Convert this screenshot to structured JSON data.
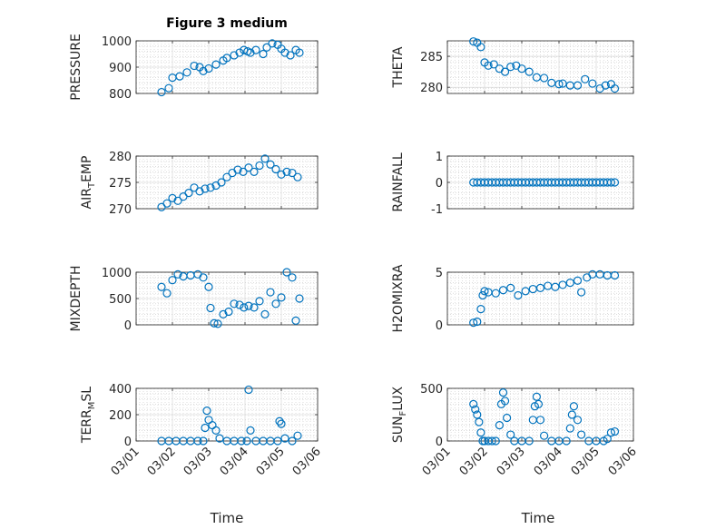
{
  "figure_title": "Figure 3 medium",
  "x_axis_label": "Time",
  "x_ticks": [
    "03/01",
    "03/02",
    "03/03",
    "03/04",
    "03/05",
    "03/06"
  ],
  "colors": {
    "marker": "#0072bd",
    "axes": "#262626",
    "grid": "#cfcfcf"
  },
  "chart_data": [
    {
      "type": "scatter",
      "ylabel": "PRESSURE",
      "yticks": [
        "800",
        "900",
        "1000"
      ],
      "ylim": [
        800,
        1000
      ],
      "xlabel": "",
      "grid": "on",
      "marker": "circle",
      "x": [
        1.7,
        1.9,
        2.0,
        2.2,
        2.4,
        2.6,
        2.75,
        2.85,
        3.0,
        3.2,
        3.4,
        3.5,
        3.7,
        3.85,
        3.97,
        4.07,
        4.15,
        4.3,
        4.5,
        4.6,
        4.75,
        4.9,
        5.0,
        5.1,
        5.25,
        5.4,
        5.5
      ],
      "y": [
        805,
        820,
        860,
        865,
        880,
        905,
        900,
        885,
        895,
        910,
        925,
        935,
        945,
        955,
        965,
        960,
        955,
        965,
        950,
        975,
        990,
        985,
        970,
        955,
        945,
        965,
        955
      ]
    },
    {
      "type": "scatter",
      "ylabel": "THETA",
      "yticks": [
        "280",
        "285"
      ],
      "ylim": [
        279,
        287.5
      ],
      "xlabel": "",
      "grid": "on",
      "marker": "circle",
      "x": [
        1.7,
        1.8,
        1.9,
        2.0,
        2.1,
        2.25,
        2.4,
        2.55,
        2.7,
        2.85,
        3.0,
        3.2,
        3.4,
        3.6,
        3.8,
        4.0,
        4.1,
        4.3,
        4.5,
        4.7,
        4.9,
        5.1,
        5.25,
        5.4,
        5.5
      ],
      "y": [
        287.4,
        287.2,
        286.5,
        284.0,
        283.5,
        283.7,
        283.0,
        282.5,
        283.3,
        283.5,
        283.0,
        282.5,
        281.6,
        281.5,
        280.7,
        280.5,
        280.6,
        280.3,
        280.3,
        281.3,
        280.6,
        279.8,
        280.3,
        280.5,
        279.8
      ]
    },
    {
      "type": "scatter",
      "ylabel": "AIR_TEMP",
      "ylabel_main": "AIR",
      "ylabel_sub": "T",
      "ylabel_rest": "EMP",
      "yticks": [
        "270",
        "275",
        "280"
      ],
      "ylim": [
        270,
        280
      ],
      "xlabel": "",
      "grid": "on",
      "marker": "circle",
      "x": [
        1.7,
        1.85,
        2.0,
        2.15,
        2.3,
        2.45,
        2.6,
        2.75,
        2.9,
        3.05,
        3.2,
        3.35,
        3.5,
        3.65,
        3.8,
        3.95,
        4.1,
        4.25,
        4.4,
        4.55,
        4.7,
        4.85,
        5.0,
        5.15,
        5.3,
        5.45
      ],
      "y": [
        270.3,
        271.0,
        272.0,
        271.5,
        272.3,
        273.0,
        274.0,
        273.3,
        273.8,
        274.0,
        274.4,
        275.0,
        276.0,
        276.8,
        277.4,
        277.0,
        277.8,
        277.0,
        278.2,
        279.5,
        278.4,
        277.5,
        276.5,
        277.0,
        276.8,
        276.0
      ]
    },
    {
      "type": "scatter",
      "ylabel": "RAINFALL",
      "yticks": [
        "-1",
        "0",
        "1"
      ],
      "ylim": [
        -1,
        1
      ],
      "xlabel": "",
      "grid": "on",
      "marker": "circle",
      "x": [
        1.7,
        1.8,
        1.9,
        2.0,
        2.1,
        2.2,
        2.3,
        2.4,
        2.5,
        2.6,
        2.7,
        2.8,
        2.9,
        3.0,
        3.1,
        3.2,
        3.3,
        3.4,
        3.5,
        3.6,
        3.7,
        3.8,
        3.9,
        4.0,
        4.1,
        4.2,
        4.3,
        4.4,
        4.5,
        4.6,
        4.7,
        4.8,
        4.9,
        5.0,
        5.1,
        5.2,
        5.3,
        5.4,
        5.5
      ],
      "y": [
        0,
        0,
        0,
        0,
        0,
        0,
        0,
        0,
        0,
        0,
        0,
        0,
        0,
        0,
        0,
        0,
        0,
        0,
        0,
        0,
        0,
        0,
        0,
        0,
        0,
        0,
        0,
        0,
        0,
        0,
        0,
        0,
        0,
        0,
        0,
        0,
        0,
        0,
        0
      ]
    },
    {
      "type": "scatter",
      "ylabel": "MIXDEPTH",
      "yticks": [
        "0",
        "500",
        "1000"
      ],
      "ylim": [
        0,
        1000
      ],
      "xlabel": "",
      "grid": "on",
      "marker": "circle",
      "x": [
        1.7,
        1.85,
        2.0,
        2.15,
        2.3,
        2.5,
        2.7,
        2.85,
        3.0,
        3.05,
        3.15,
        3.25,
        3.4,
        3.55,
        3.7,
        3.85,
        3.97,
        4.1,
        4.25,
        4.4,
        4.55,
        4.7,
        4.85,
        5.0,
        5.15,
        5.3,
        5.4,
        5.5
      ],
      "y": [
        720,
        600,
        850,
        960,
        920,
        940,
        960,
        900,
        720,
        320,
        30,
        20,
        200,
        250,
        400,
        380,
        330,
        360,
        330,
        450,
        200,
        620,
        400,
        520,
        1000,
        900,
        80,
        500
      ]
    },
    {
      "type": "scatter",
      "ylabel": "H2OMIXRA",
      "yticks": [
        "0",
        "5"
      ],
      "ylim": [
        0,
        5
      ],
      "xlabel": "",
      "grid": "on",
      "marker": "circle",
      "x": [
        1.7,
        1.8,
        1.9,
        1.95,
        2.0,
        2.1,
        2.3,
        2.5,
        2.7,
        2.9,
        3.1,
        3.3,
        3.5,
        3.7,
        3.9,
        4.1,
        4.3,
        4.5,
        4.6,
        4.75,
        4.9,
        5.1,
        5.3,
        5.5
      ],
      "y": [
        0.2,
        0.3,
        1.5,
        2.8,
        3.2,
        3.1,
        3.0,
        3.3,
        3.5,
        2.8,
        3.2,
        3.4,
        3.5,
        3.7,
        3.6,
        3.8,
        4.0,
        4.2,
        3.1,
        4.5,
        4.8,
        4.8,
        4.7,
        4.7
      ]
    },
    {
      "type": "scatter",
      "ylabel": "TERR_MSL",
      "ylabel_main": "TERR",
      "ylabel_sub": "M",
      "ylabel_rest": "SL",
      "yticks": [
        "0",
        "200",
        "400"
      ],
      "ylim": [
        0,
        400
      ],
      "xlabel": "",
      "grid": "on",
      "marker": "circle",
      "x": [
        1.7,
        1.9,
        2.1,
        2.3,
        2.5,
        2.7,
        2.85,
        2.9,
        2.95,
        3.0,
        3.1,
        3.2,
        3.3,
        3.5,
        3.7,
        3.9,
        4.05,
        4.1,
        4.15,
        4.3,
        4.5,
        4.7,
        4.9,
        4.95,
        5.0,
        5.1,
        5.3,
        5.45
      ],
      "y": [
        0,
        0,
        0,
        0,
        0,
        0,
        0,
        100,
        230,
        160,
        120,
        80,
        20,
        0,
        0,
        0,
        0,
        390,
        80,
        0,
        0,
        0,
        0,
        150,
        130,
        20,
        0,
        40
      ]
    },
    {
      "type": "scatter",
      "ylabel": "SUN_FLUX",
      "ylabel_main": "SUN",
      "ylabel_sub": "F",
      "ylabel_rest": "LUX",
      "yticks": [
        "0",
        "500"
      ],
      "ylim": [
        0,
        500
      ],
      "xlabel": "",
      "grid": "on",
      "marker": "circle",
      "x": [
        1.7,
        1.75,
        1.8,
        1.85,
        1.9,
        1.95,
        2.0,
        2.1,
        2.2,
        2.3,
        2.4,
        2.45,
        2.5,
        2.55,
        2.6,
        2.7,
        2.8,
        3.0,
        3.2,
        3.3,
        3.35,
        3.4,
        3.45,
        3.5,
        3.6,
        3.8,
        4.0,
        4.2,
        4.3,
        4.35,
        4.4,
        4.5,
        4.6,
        4.8,
        5.0,
        5.2,
        5.3,
        5.4,
        5.5
      ],
      "y": [
        350,
        300,
        250,
        180,
        80,
        0,
        0,
        0,
        0,
        0,
        150,
        350,
        460,
        380,
        220,
        60,
        0,
        0,
        0,
        200,
        330,
        420,
        350,
        200,
        50,
        0,
        0,
        0,
        120,
        250,
        330,
        200,
        60,
        0,
        0,
        0,
        20,
        80,
        90
      ]
    }
  ]
}
